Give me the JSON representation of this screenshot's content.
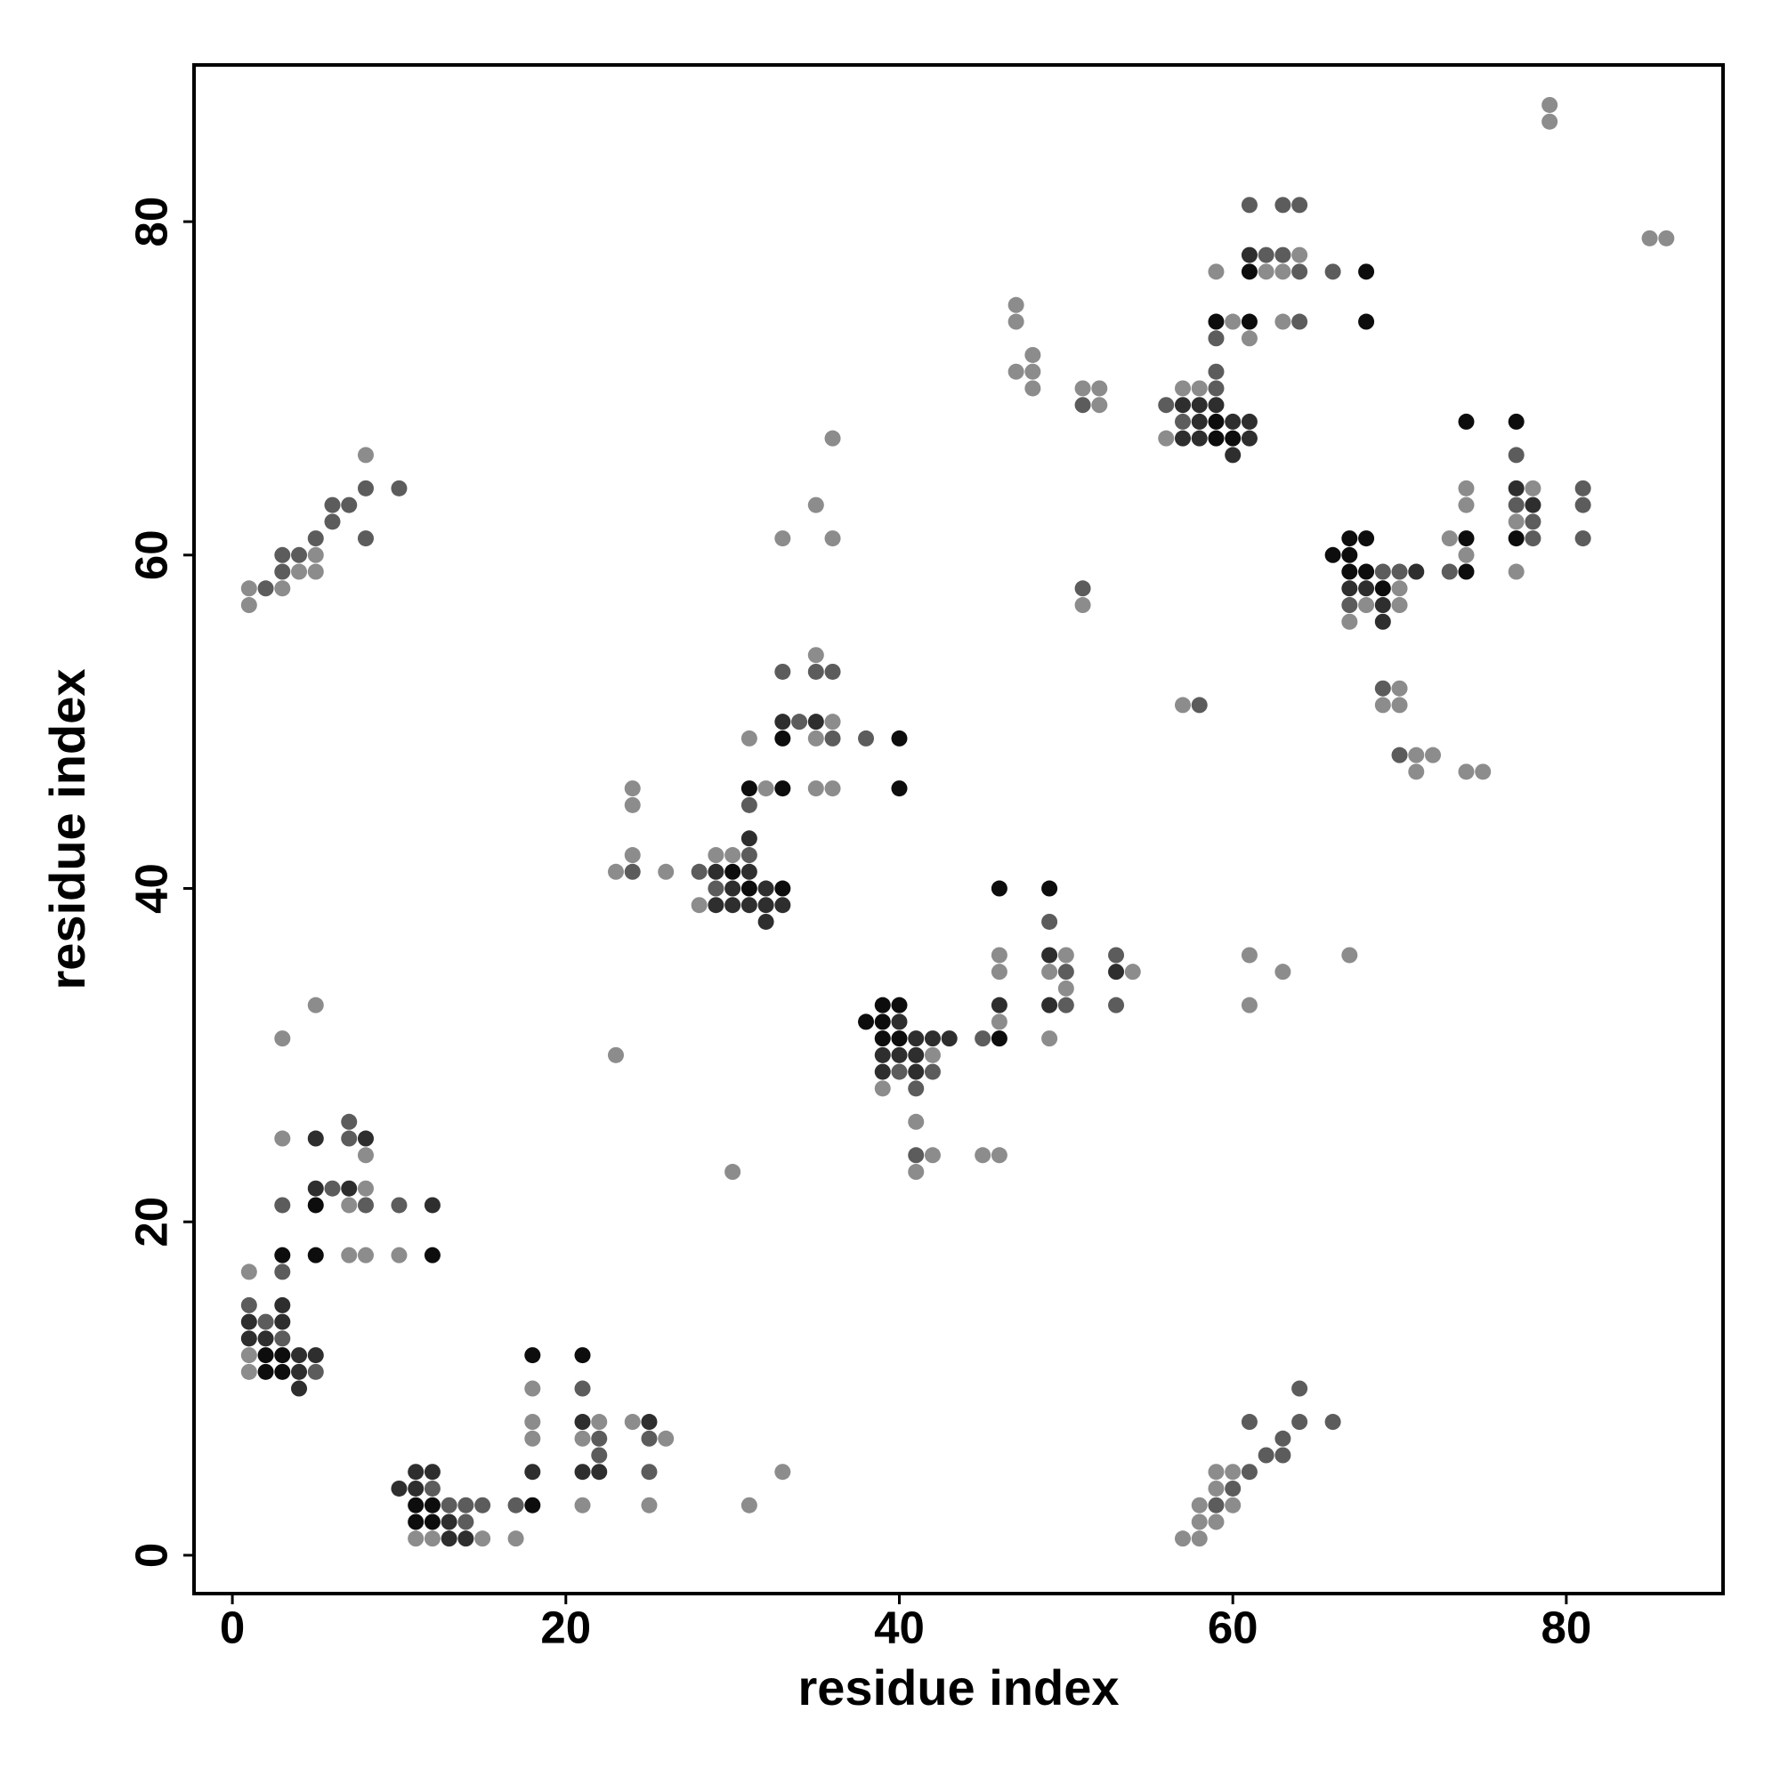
{
  "chart_data": {
    "type": "scatter",
    "xlabel": "residue index",
    "ylabel": "residue index",
    "xlim": [
      -2.3,
      89.4
    ],
    "ylim": [
      -2.3,
      89.4
    ],
    "xticks": [
      0,
      20,
      40,
      60,
      80
    ],
    "yticks": [
      0,
      20,
      40,
      60,
      80
    ],
    "grid": false,
    "series": [
      {
        "color": "#8c8c8c",
        "x": [
          11,
          12,
          15,
          17,
          18,
          18,
          18,
          21,
          21,
          22,
          24,
          25,
          26,
          31,
          33,
          57,
          58,
          58,
          58,
          59,
          59,
          59,
          60,
          60,
          1,
          1,
          1,
          3,
          3,
          5,
          7,
          7,
          8,
          8,
          8,
          10,
          1,
          1,
          3,
          4,
          5,
          5,
          8,
          23,
          23,
          24,
          24,
          24,
          26,
          28,
          29,
          30,
          30,
          31,
          32,
          33,
          35,
          35,
          35,
          35,
          36,
          36,
          36,
          36,
          39,
          41,
          41,
          42,
          42,
          45,
          46,
          46,
          46,
          46,
          49,
          49,
          50,
          50,
          54,
          61,
          61,
          63,
          67,
          47,
          47,
          47,
          48,
          48,
          48,
          51,
          51,
          52,
          52,
          57,
          56,
          57,
          58,
          59,
          60,
          61,
          62,
          63,
          63,
          64,
          67,
          68,
          69,
          70,
          70,
          70,
          70,
          71,
          71,
          72,
          73,
          74,
          74,
          74,
          74,
          75,
          77,
          77,
          78,
          79,
          79,
          85,
          86
        ],
        "y": [
          1,
          1,
          1,
          1,
          10,
          8,
          7,
          7,
          3,
          8,
          8,
          3,
          7,
          3,
          5,
          1,
          3,
          2,
          1,
          5,
          4,
          2,
          5,
          3,
          17,
          12,
          11,
          31,
          25,
          33,
          21,
          18,
          24,
          22,
          18,
          18,
          58,
          57,
          58,
          59,
          60,
          59,
          66,
          41,
          30,
          46,
          45,
          42,
          41,
          39,
          42,
          42,
          23,
          49,
          46,
          61,
          63,
          54,
          49,
          46,
          67,
          61,
          50,
          46,
          28,
          26,
          23,
          30,
          24,
          24,
          36,
          35,
          32,
          24,
          35,
          31,
          36,
          34,
          35,
          36,
          33,
          35,
          36,
          75,
          74,
          71,
          72,
          71,
          70,
          70,
          57,
          70,
          69,
          51,
          67,
          70,
          70,
          77,
          74,
          73,
          77,
          77,
          74,
          78,
          56,
          57,
          51,
          58,
          57,
          52,
          51,
          48,
          47,
          48,
          61,
          64,
          63,
          60,
          47,
          47,
          62,
          59,
          64,
          87,
          86,
          79,
          79
        ]
      },
      {
        "color": "#5c5c5c",
        "x": [
          12,
          13,
          14,
          14,
          15,
          17,
          21,
          22,
          22,
          25,
          25,
          59,
          60,
          61,
          61,
          62,
          63,
          63,
          64,
          64,
          66,
          1,
          2,
          3,
          3,
          3,
          5,
          6,
          7,
          7,
          8,
          10,
          2,
          3,
          3,
          4,
          5,
          6,
          6,
          7,
          8,
          8,
          10,
          24,
          28,
          29,
          31,
          31,
          33,
          34,
          35,
          36,
          36,
          38,
          40,
          41,
          41,
          42,
          45,
          49,
          50,
          50,
          53,
          53,
          51,
          51,
          58,
          56,
          57,
          59,
          59,
          59,
          61,
          62,
          63,
          63,
          64,
          64,
          64,
          66,
          67,
          69,
          69,
          70,
          70,
          73,
          77,
          77,
          78,
          78,
          81,
          81,
          81
        ],
        "y": [
          4,
          3,
          3,
          2,
          3,
          3,
          10,
          7,
          6,
          7,
          5,
          3,
          4,
          8,
          5,
          6,
          7,
          6,
          10,
          8,
          8,
          15,
          14,
          21,
          17,
          13,
          11,
          22,
          26,
          25,
          21,
          21,
          58,
          60,
          59,
          60,
          61,
          63,
          62,
          63,
          64,
          61,
          64,
          41,
          41,
          40,
          45,
          42,
          53,
          50,
          53,
          53,
          49,
          49,
          29,
          28,
          24,
          29,
          31,
          38,
          35,
          33,
          36,
          33,
          69,
          58,
          51,
          69,
          68,
          73,
          71,
          70,
          81,
          78,
          81,
          78,
          81,
          77,
          74,
          77,
          57,
          59,
          52,
          59,
          48,
          59,
          66,
          63,
          62,
          61,
          64,
          63,
          61
        ]
      },
      {
        "color": "#2e2e2e",
        "x": [
          10,
          11,
          11,
          12,
          13,
          13,
          14,
          18,
          21,
          21,
          22,
          25,
          1,
          1,
          2,
          3,
          3,
          4,
          4,
          4,
          5,
          5,
          5,
          7,
          8,
          12,
          29,
          29,
          30,
          30,
          31,
          31,
          31,
          32,
          32,
          32,
          33,
          33,
          35,
          39,
          39,
          40,
          40,
          41,
          41,
          41,
          42,
          43,
          46,
          49,
          49,
          53,
          57,
          57,
          58,
          58,
          58,
          59,
          60,
          60,
          61,
          61,
          61,
          67,
          68,
          69,
          69,
          71,
          77,
          78
        ],
        "y": [
          4,
          5,
          4,
          5,
          2,
          1,
          1,
          5,
          8,
          5,
          5,
          8,
          14,
          13,
          13,
          15,
          14,
          12,
          11,
          10,
          25,
          22,
          12,
          22,
          25,
          21,
          41,
          39,
          40,
          39,
          43,
          41,
          39,
          40,
          39,
          38,
          50,
          39,
          50,
          30,
          29,
          32,
          30,
          31,
          30,
          29,
          31,
          31,
          33,
          36,
          33,
          35,
          69,
          67,
          69,
          68,
          67,
          69,
          68,
          66,
          78,
          68,
          67,
          58,
          58,
          57,
          56,
          59,
          64,
          63
        ]
      },
      {
        "color": "#0d0d0d",
        "x": [
          11,
          11,
          12,
          12,
          18,
          18,
          21,
          2,
          2,
          3,
          3,
          3,
          5,
          5,
          12,
          30,
          31,
          31,
          33,
          33,
          33,
          40,
          40,
          38,
          39,
          39,
          39,
          40,
          40,
          46,
          46,
          49,
          59,
          59,
          59,
          60,
          61,
          61,
          68,
          68,
          66,
          67,
          67,
          67,
          68,
          68,
          69,
          74,
          74,
          74,
          77,
          77
        ],
        "y": [
          3,
          2,
          3,
          2,
          12,
          3,
          12,
          12,
          11,
          18,
          12,
          11,
          21,
          18,
          18,
          41,
          46,
          40,
          49,
          46,
          40,
          49,
          46,
          32,
          33,
          32,
          31,
          33,
          31,
          40,
          31,
          40,
          74,
          68,
          67,
          67,
          77,
          74,
          77,
          74,
          60,
          61,
          60,
          59,
          61,
          59,
          58,
          68,
          61,
          59,
          68,
          61
        ]
      }
    ]
  }
}
